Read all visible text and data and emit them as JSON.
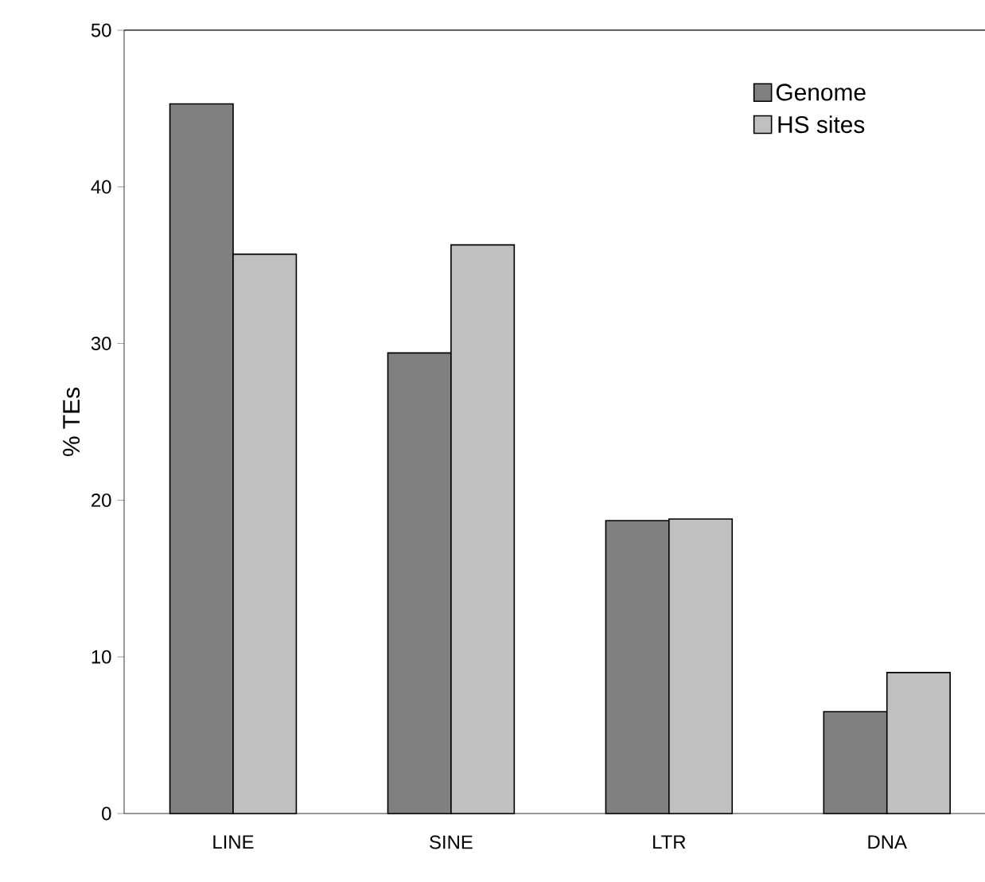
{
  "chart_data": {
    "type": "bar",
    "ylabel": "% TEs",
    "categories": [
      "LINE",
      "SINE",
      "LTR",
      "DNA"
    ],
    "series": [
      {
        "name": "Genome",
        "color": "#808080",
        "values": [
          45.3,
          29.4,
          18.7,
          6.5
        ]
      },
      {
        "name": "HS sites",
        "color": "#c0c0c0",
        "values": [
          35.7,
          36.3,
          18.8,
          9.0
        ]
      }
    ],
    "ylim": [
      0,
      50
    ],
    "yticks": [
      0,
      10,
      20,
      30,
      40,
      50
    ],
    "legend": "top right",
    "grid": false
  }
}
